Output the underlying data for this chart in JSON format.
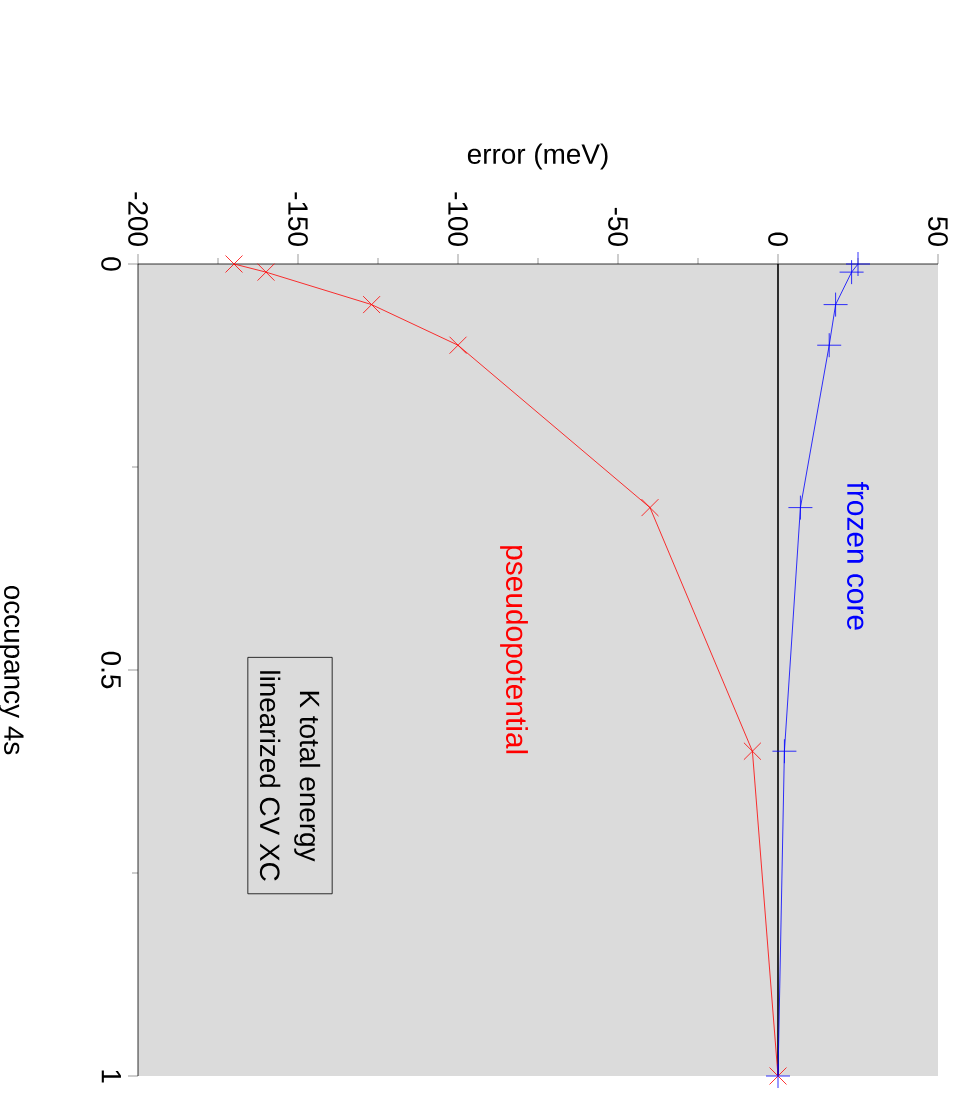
{
  "chart_data": {
    "type": "line",
    "xlabel": "error  (meV)",
    "ylabel": "occupancy 4s",
    "xlim": [
      -200,
      50
    ],
    "xticks": [
      -200,
      -150,
      -100,
      -50,
      0,
      50
    ],
    "ylim": [
      1,
      0
    ],
    "yticks": [
      0,
      0.5,
      1
    ],
    "series": [
      {
        "name": "pseudopotential",
        "color": "#ff0000",
        "marker": "cross",
        "x": [
          -170,
          -160,
          -127,
          -100,
          -40,
          -8,
          0
        ],
        "values": [
          0,
          0.01,
          0.05,
          0.1,
          0.3,
          0.6,
          1
        ]
      },
      {
        "name": "frozen core",
        "color": "#0000ff",
        "marker": "plus",
        "x": [
          25,
          23,
          18,
          16,
          7,
          2,
          0
        ],
        "values": [
          0,
          0.01,
          0.05,
          0.1,
          0.3,
          0.6,
          1
        ]
      }
    ],
    "ref_lines": [
      {
        "axis": "x",
        "value": 0,
        "color": "#000000"
      }
    ],
    "annotations": [
      "K total energy",
      "linearized CV XC"
    ]
  }
}
